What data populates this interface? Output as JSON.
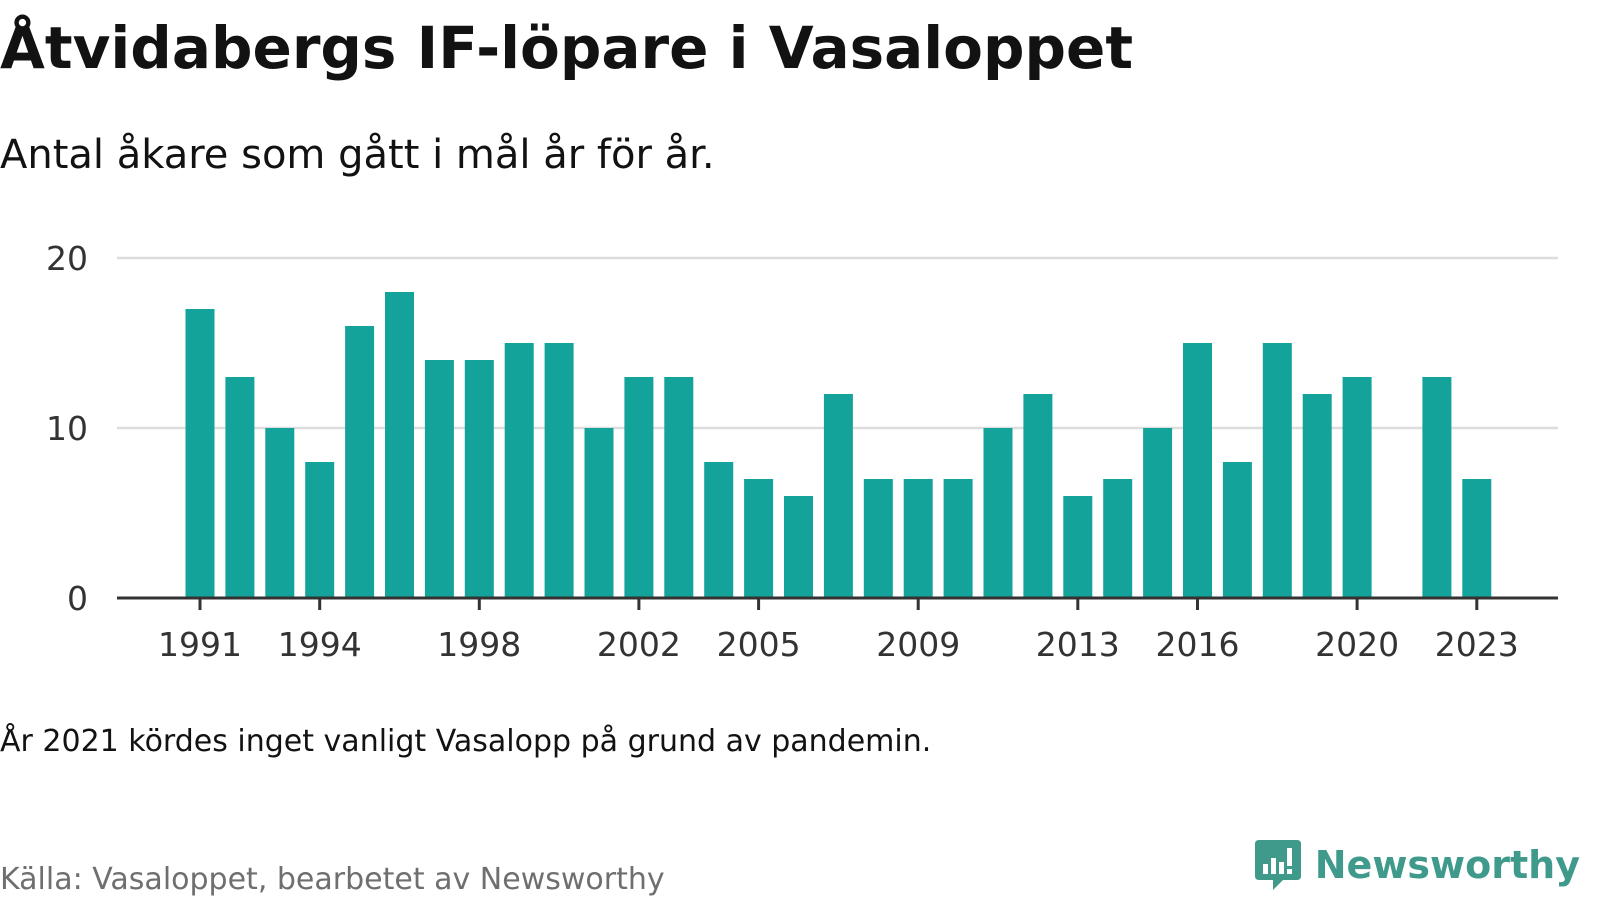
{
  "title": "Åtvidabergs IF-löpare i Vasaloppet",
  "subtitle": "Antal åkare som gått i mål år för år.",
  "note": "År 2021 kördes inget vanligt Vasalopp på grund av pandemin.",
  "source": "Källa: Vasaloppet, bearbetet av Newsworthy",
  "brand": "Newsworthy",
  "colors": {
    "bar": "#14a39a",
    "grid": "#dddddd",
    "axis": "#333333",
    "tick_text": "#333333",
    "brand": "#3f9a8c"
  },
  "chart_data": {
    "type": "bar",
    "x": [
      1991,
      1992,
      1993,
      1994,
      1995,
      1996,
      1997,
      1998,
      1999,
      2000,
      2001,
      2002,
      2003,
      2004,
      2005,
      2006,
      2007,
      2008,
      2009,
      2010,
      2011,
      2012,
      2013,
      2014,
      2015,
      2016,
      2017,
      2018,
      2019,
      2020,
      2021,
      2022,
      2023
    ],
    "values": [
      17,
      13,
      10,
      8,
      16,
      18,
      14,
      14,
      15,
      15,
      10,
      13,
      13,
      8,
      7,
      6,
      12,
      7,
      7,
      7,
      10,
      12,
      6,
      7,
      10,
      15,
      8,
      15,
      12,
      13,
      null,
      13,
      7
    ],
    "x_ticks": [
      "1991",
      "1994",
      "1998",
      "2002",
      "2005",
      "2009",
      "2013",
      "2016",
      "2020",
      "2023"
    ],
    "y_ticks": [
      "0",
      "10",
      "20"
    ],
    "ylim": [
      0,
      20
    ],
    "grid": true,
    "xlabel": "",
    "ylabel": ""
  }
}
